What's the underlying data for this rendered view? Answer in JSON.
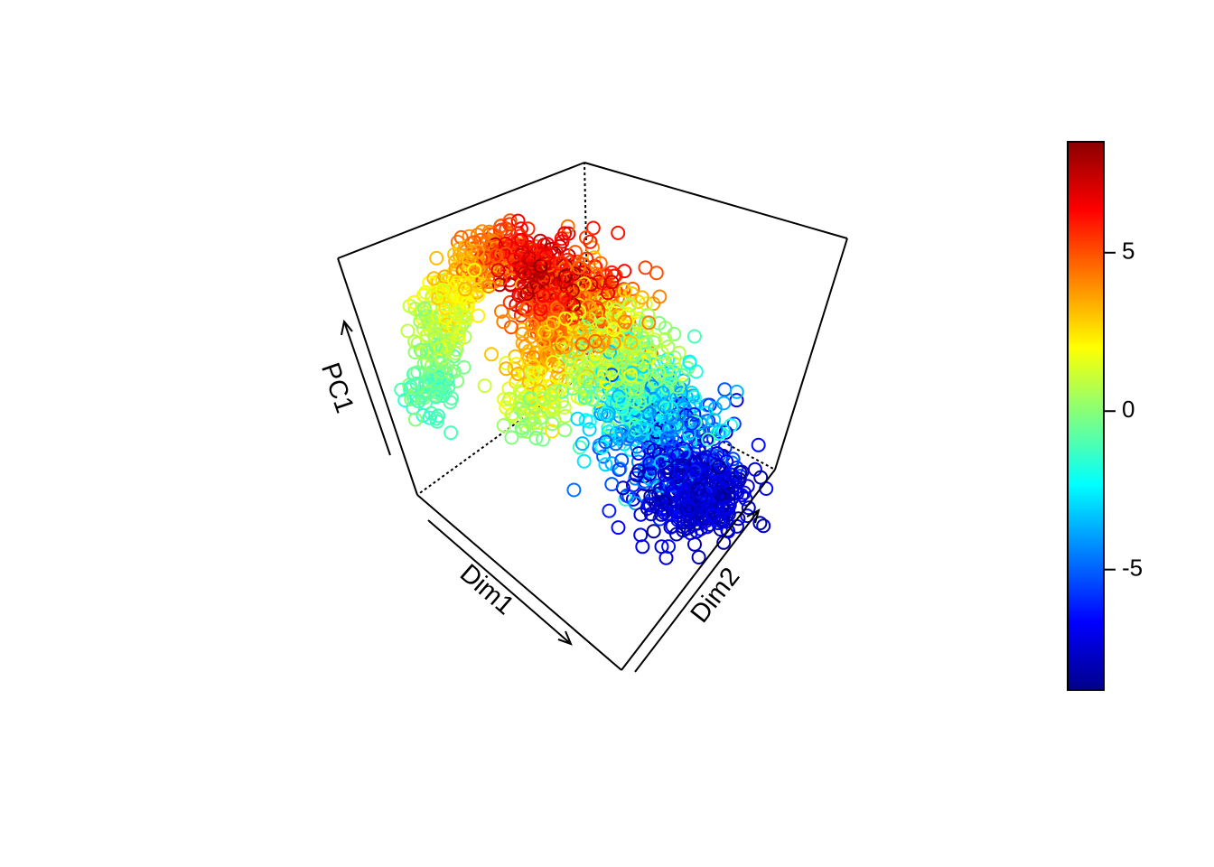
{
  "chart_data": {
    "type": "scatter",
    "kind": "3d-scatter",
    "title": "",
    "axes": {
      "x_label": "Dim1",
      "y_label": "Dim2",
      "z_label": "PC1"
    },
    "color_variable": "PC1",
    "colorbar": {
      "range": [
        -8.8,
        8.5
      ],
      "ticks": [
        5,
        0,
        -5
      ],
      "tick_labels": [
        "5",
        "0",
        "-5"
      ],
      "palette": [
        "#00008B",
        "#0000FF",
        "#0080FF",
        "#00FFFF",
        "#80FF80",
        "#FFFF00",
        "#FF8000",
        "#FF0000",
        "#8B0000"
      ],
      "position": "right"
    },
    "marker": "open-circle",
    "grid": false,
    "structure": {
      "description_note": "",
      "lobe_a": {
        "t_range": [
          0,
          1
        ]
      },
      "lobe_b": {
        "t_range": [
          0,
          1
        ]
      }
    },
    "approx_point_count": 2000,
    "seed": 42
  }
}
